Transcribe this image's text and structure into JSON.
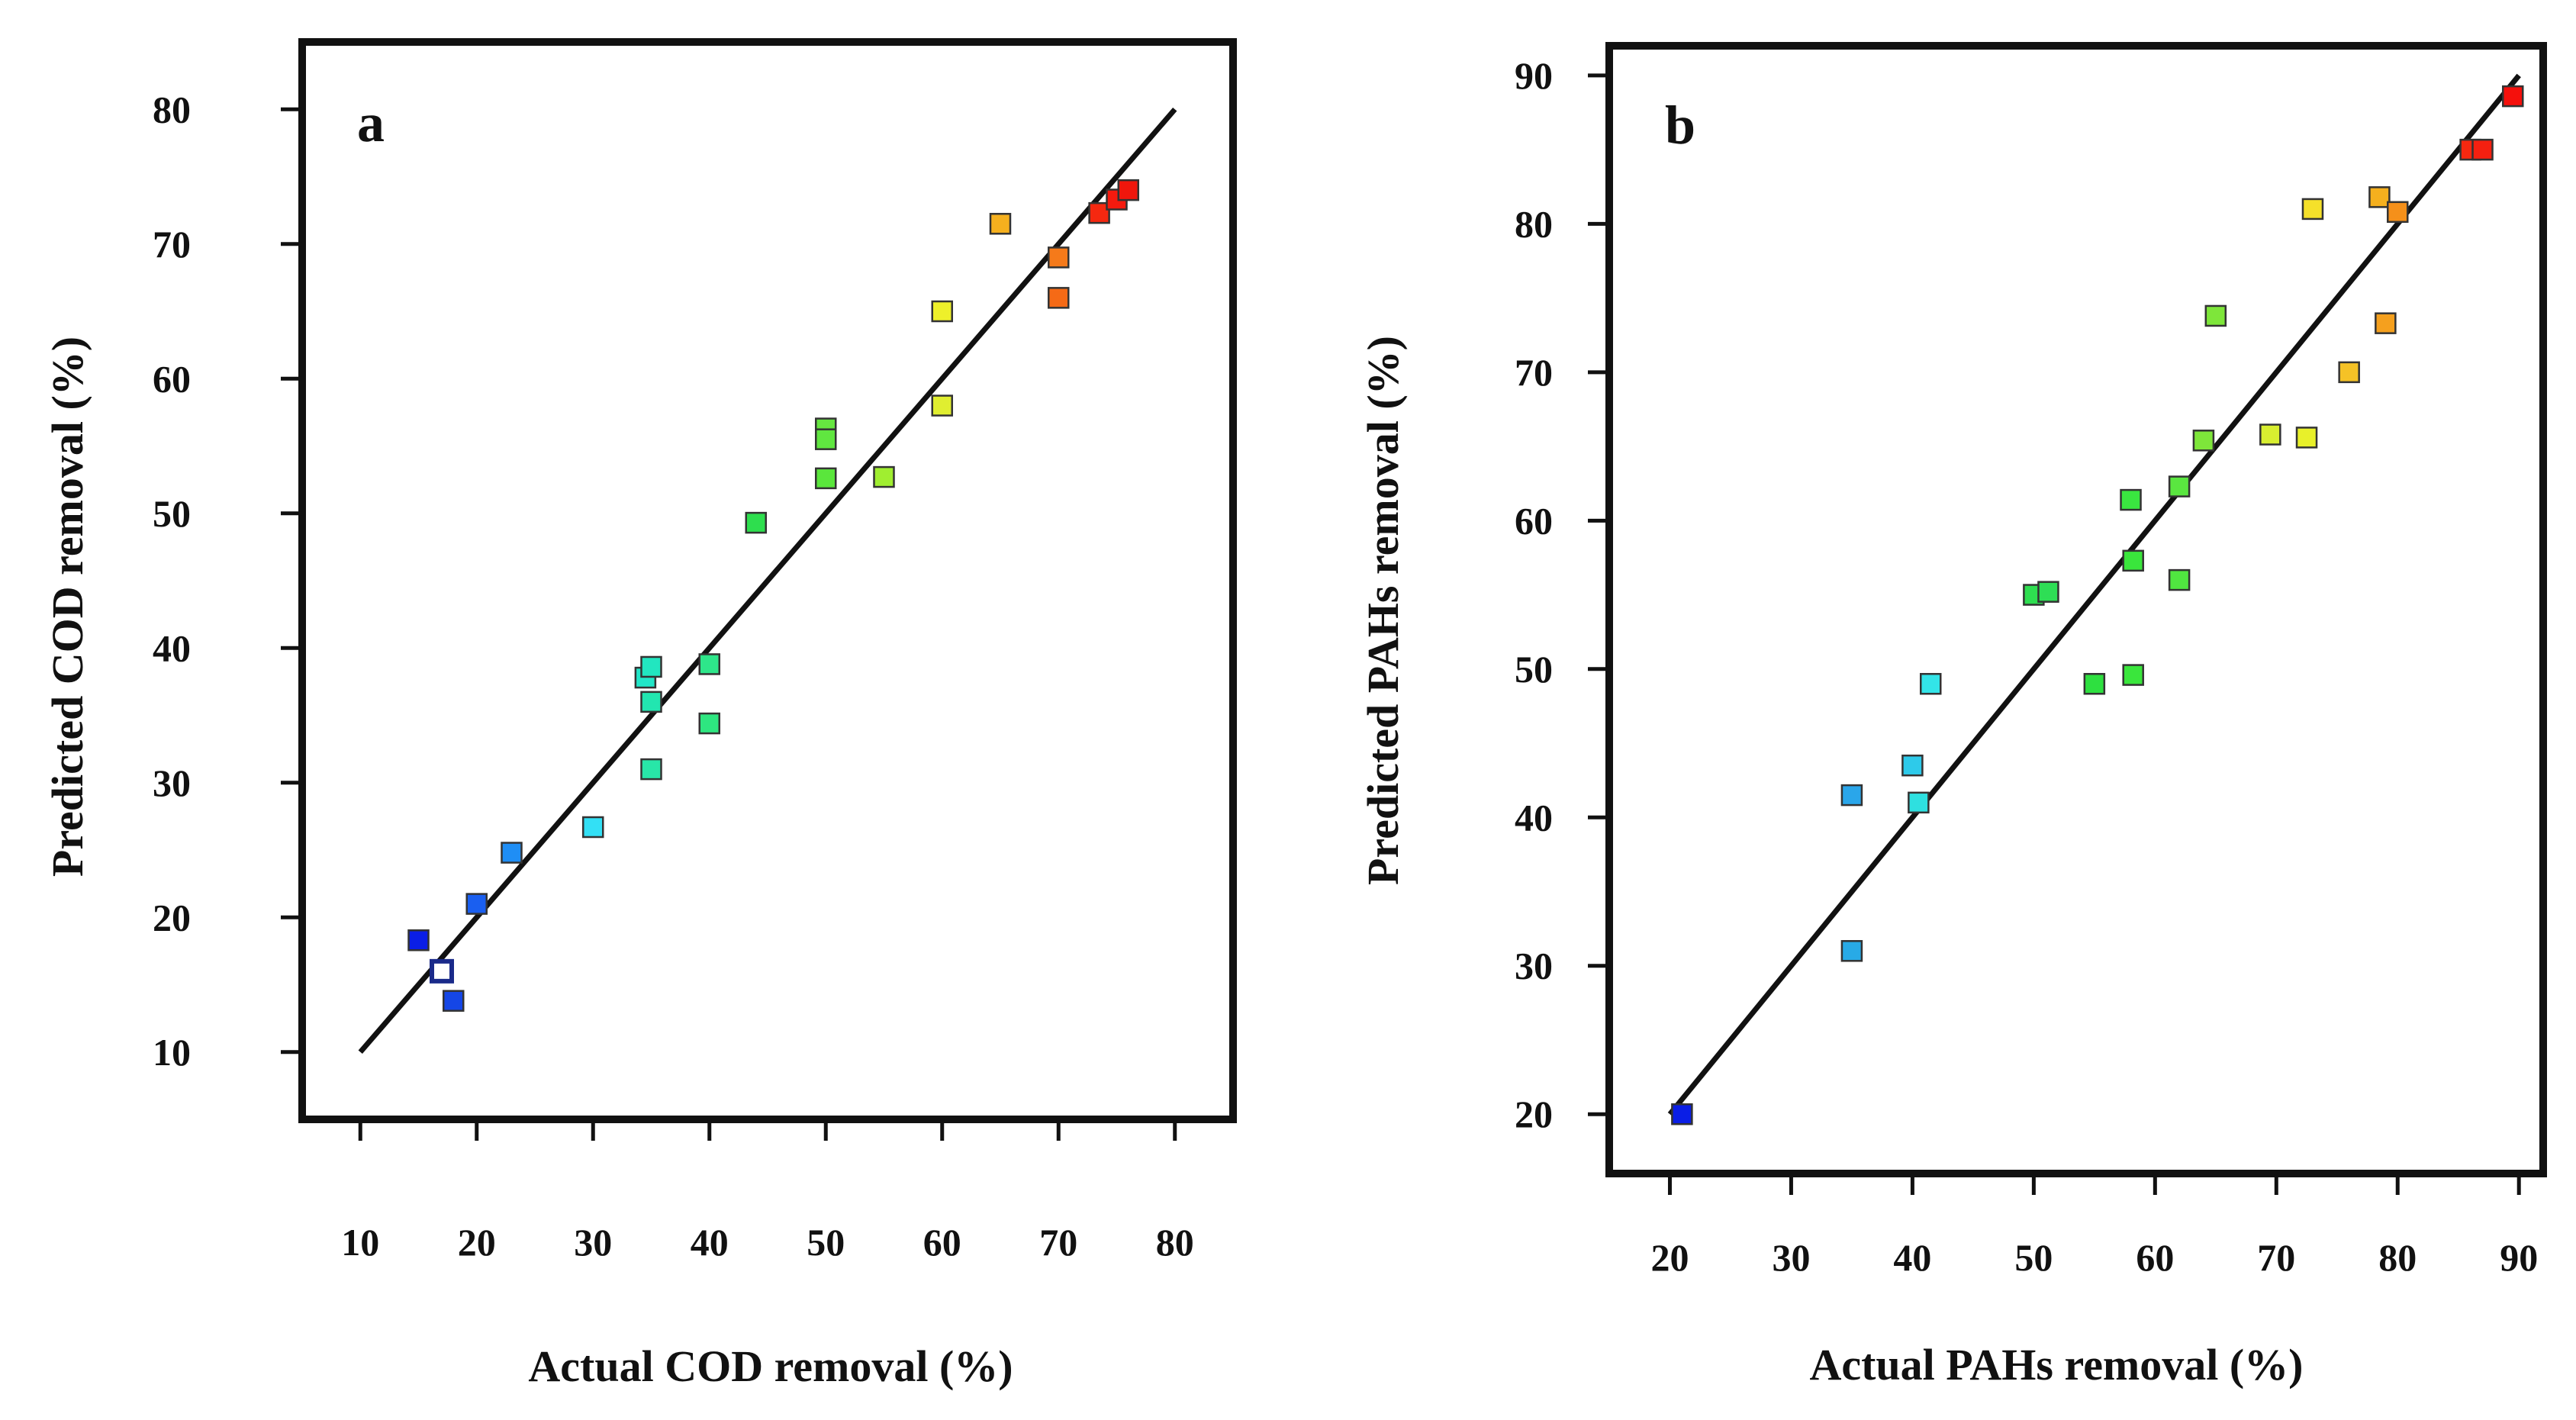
{
  "chart_data": [
    {
      "type": "scatter",
      "panel_label": "a",
      "title": "",
      "xlabel": "Actual COD removal (%)",
      "ylabel": "Predicted COD removal (%)",
      "xlim": [
        5,
        85
      ],
      "ylim": [
        5,
        85
      ],
      "xticks": [
        10,
        20,
        30,
        40,
        50,
        60,
        70,
        80
      ],
      "yticks": [
        10,
        20,
        30,
        40,
        50,
        60,
        70,
        80
      ],
      "fit_line": {
        "x": [
          10,
          80
        ],
        "y": [
          10,
          80
        ]
      },
      "grid": false,
      "points": [
        {
          "x": 15,
          "y": 18.3,
          "color": "#0a1ee6"
        },
        {
          "x": 17,
          "y": 16,
          "color": "#ffffff",
          "hollow": true
        },
        {
          "x": 18,
          "y": 13.8,
          "color": "#1546e6"
        },
        {
          "x": 20,
          "y": 21,
          "color": "#1a5ff0"
        },
        {
          "x": 23,
          "y": 24.8,
          "color": "#1f8ef5"
        },
        {
          "x": 30,
          "y": 26.7,
          "color": "#33e0f5"
        },
        {
          "x": 34.5,
          "y": 37.8,
          "color": "#22e6c8"
        },
        {
          "x": 35,
          "y": 38.6,
          "color": "#22e6c0"
        },
        {
          "x": 35,
          "y": 36,
          "color": "#22e6b0"
        },
        {
          "x": 35,
          "y": 31,
          "color": "#28e6a8"
        },
        {
          "x": 40,
          "y": 38.8,
          "color": "#2ee68a"
        },
        {
          "x": 40,
          "y": 34.4,
          "color": "#2ee680"
        },
        {
          "x": 44,
          "y": 49.3,
          "color": "#2ede4e"
        },
        {
          "x": 50,
          "y": 56.3,
          "color": "#66e640"
        },
        {
          "x": 50,
          "y": 55.5,
          "color": "#60e640"
        },
        {
          "x": 50,
          "y": 52.6,
          "color": "#5ae63c"
        },
        {
          "x": 55,
          "y": 52.7,
          "color": "#a0ee30"
        },
        {
          "x": 60,
          "y": 65,
          "color": "#eef02a"
        },
        {
          "x": 60,
          "y": 58,
          "color": "#e0ee30"
        },
        {
          "x": 65,
          "y": 71.5,
          "color": "#f5b01e"
        },
        {
          "x": 70,
          "y": 69,
          "color": "#f57a1a"
        },
        {
          "x": 70,
          "y": 66,
          "color": "#f56a16"
        },
        {
          "x": 73.5,
          "y": 72.3,
          "color": "#f52810"
        },
        {
          "x": 75,
          "y": 73.3,
          "color": "#f51a0e"
        },
        {
          "x": 76,
          "y": 74,
          "color": "#f0160c"
        }
      ]
    },
    {
      "type": "scatter",
      "panel_label": "b",
      "title": "",
      "xlabel": "Actual PAHs removal (%)",
      "ylabel": "Predicted PAHs removal (%)",
      "xlim": [
        15,
        92
      ],
      "ylim": [
        16,
        92
      ],
      "xticks": [
        20,
        30,
        40,
        50,
        60,
        70,
        80,
        90
      ],
      "yticks": [
        20,
        30,
        40,
        50,
        60,
        70,
        80,
        90
      ],
      "fit_line": {
        "x": [
          20,
          90
        ],
        "y": [
          20,
          90
        ]
      },
      "grid": false,
      "points": [
        {
          "x": 21,
          "y": 20,
          "color": "#0a1ee6"
        },
        {
          "x": 35,
          "y": 31,
          "color": "#28aae6"
        },
        {
          "x": 35,
          "y": 41.5,
          "color": "#2aa6ea"
        },
        {
          "x": 40,
          "y": 43.5,
          "color": "#2ecaea"
        },
        {
          "x": 40.5,
          "y": 41,
          "color": "#2ee0e0"
        },
        {
          "x": 41.5,
          "y": 49,
          "color": "#33e4e8"
        },
        {
          "x": 50,
          "y": 55,
          "color": "#2ede50"
        },
        {
          "x": 51.2,
          "y": 55.2,
          "color": "#2ede55"
        },
        {
          "x": 55,
          "y": 49,
          "color": "#2ee040"
        },
        {
          "x": 58,
          "y": 61.4,
          "color": "#3ae640"
        },
        {
          "x": 58.2,
          "y": 57.3,
          "color": "#3ae63c"
        },
        {
          "x": 58.2,
          "y": 49.6,
          "color": "#3ae63c"
        },
        {
          "x": 62,
          "y": 62.3,
          "color": "#5ae640"
        },
        {
          "x": 62,
          "y": 56,
          "color": "#50e640"
        },
        {
          "x": 64,
          "y": 65.4,
          "color": "#7ee63a"
        },
        {
          "x": 65,
          "y": 73.8,
          "color": "#7ee63a"
        },
        {
          "x": 69.5,
          "y": 65.8,
          "color": "#d8ee30"
        },
        {
          "x": 72.5,
          "y": 65.6,
          "color": "#e8f02a"
        },
        {
          "x": 73,
          "y": 81,
          "color": "#f5e02a"
        },
        {
          "x": 76,
          "y": 70,
          "color": "#f5c226"
        },
        {
          "x": 78.5,
          "y": 81.8,
          "color": "#f5b01e"
        },
        {
          "x": 79,
          "y": 73.3,
          "color": "#f5a01e"
        },
        {
          "x": 80,
          "y": 80.8,
          "color": "#f5901a"
        },
        {
          "x": 86,
          "y": 85,
          "color": "#f52810"
        },
        {
          "x": 87,
          "y": 85,
          "color": "#f52010"
        },
        {
          "x": 89.5,
          "y": 88.6,
          "color": "#f5100c"
        }
      ]
    }
  ]
}
